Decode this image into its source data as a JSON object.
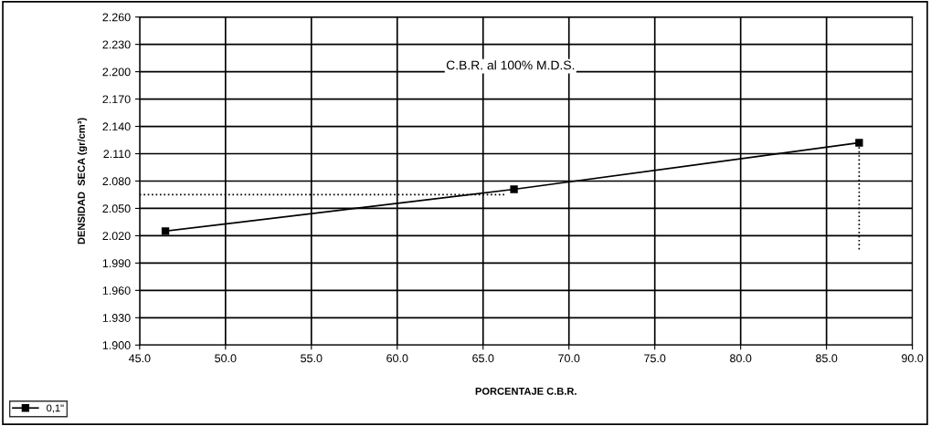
{
  "chart_data": {
    "type": "line",
    "xlabel": "PORCENTAJE C.B.R.",
    "ylabel": "DENSIDAD  SECA (gr/cm³)",
    "series": [
      {
        "name": "0,1\"",
        "color": "#000000",
        "x": [
          46.5,
          66.8,
          86.9
        ],
        "values": [
          2.025,
          2.071,
          2.122
        ],
        "marker": "square",
        "line_style": "solid"
      },
      {
        "color": "#000000",
        "x": [
          45.0,
          66.3
        ],
        "values": [
          2.065,
          2.065
        ],
        "marker": "none",
        "line_style": "dotted"
      },
      {
        "color": "#000000",
        "x": [
          86.9,
          86.9
        ],
        "values": [
          2.005,
          2.122
        ],
        "marker": "none",
        "line_style": "dotted"
      }
    ],
    "annotations": [
      "C.B.R. al 100% M.D.S."
    ],
    "xlim": [
      45.0,
      90.0
    ],
    "xticks": [
      {
        "value": 45,
        "label": "45.0"
      },
      {
        "value": 50,
        "label": "50.0"
      },
      {
        "value": 55,
        "label": "55.0"
      },
      {
        "value": 60,
        "label": "60.0"
      },
      {
        "value": 65,
        "label": "65.0"
      },
      {
        "value": 70,
        "label": "70.0"
      },
      {
        "value": 75,
        "label": "75.0"
      },
      {
        "value": 80,
        "label": "80.0"
      },
      {
        "value": 85,
        "label": "85.0"
      },
      {
        "value": 90,
        "label": "90.0"
      }
    ],
    "ylim": [
      1.9,
      2.26
    ],
    "yticks": [
      {
        "value": 1.9,
        "label": "1.900"
      },
      {
        "value": 1.93,
        "label": "1.930"
      },
      {
        "value": 1.96,
        "label": "1.960"
      },
      {
        "value": 1.99,
        "label": "1.990"
      },
      {
        "value": 2.02,
        "label": "2.020"
      },
      {
        "value": 2.05,
        "label": "2.050"
      },
      {
        "value": 2.08,
        "label": "2.080"
      },
      {
        "value": 2.11,
        "label": "2.110"
      },
      {
        "value": 2.14,
        "label": "2.140"
      },
      {
        "value": 2.17,
        "label": "2.170"
      },
      {
        "value": 2.2,
        "label": "2.200"
      },
      {
        "value": 2.23,
        "label": "2.230"
      },
      {
        "value": 2.26,
        "label": "2.260"
      }
    ],
    "grid": true,
    "legend": "bottom left"
  }
}
